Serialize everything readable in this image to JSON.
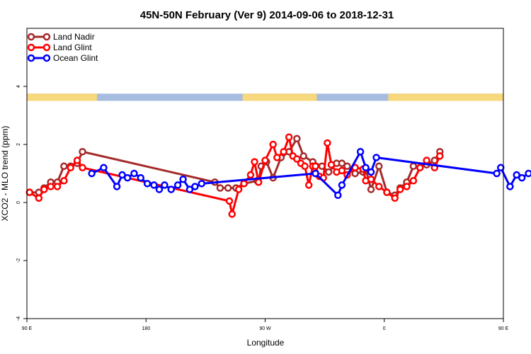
{
  "chart_data": {
    "type": "line",
    "title": "45N-50N February (Ver 9)   2014-09-06 to 2018-12-31",
    "xlabel": "Longitude",
    "ylabel": "XCO2 - MLO trend (ppm)",
    "xlim": [
      90,
      450
    ],
    "ylim": [
      -4,
      6
    ],
    "x_ticks": [
      {
        "value": 90,
        "label": "90 E"
      },
      {
        "value": 180,
        "label": "180"
      },
      {
        "value": 270,
        "label": "90 W"
      },
      {
        "value": 360,
        "label": "0"
      },
      {
        "value": 450,
        "label": "90 E"
      },
      {
        "value": 540,
        "label": "180"
      }
    ],
    "y_ticks": [
      {
        "value": -4,
        "label": "-4"
      },
      {
        "value": -2,
        "label": "-2"
      },
      {
        "value": 0,
        "label": "0"
      },
      {
        "value": 2,
        "label": "2"
      },
      {
        "value": 4,
        "label": "4"
      }
    ],
    "grid": false,
    "legend_position": "top-left",
    "land_ocean_band": {
      "y_range": [
        3.5,
        3.75
      ],
      "land_color": "#f7d87c",
      "ocean_color": "#a7bde0",
      "land_ranges": [
        [
          90,
          143
        ],
        [
          253,
          309
        ],
        [
          363,
          501
        ]
      ]
    },
    "series": [
      {
        "name": "Land Nadir",
        "color": "#a52a2a",
        "x": [
          92,
          99,
          103,
          108,
          113,
          118,
          123,
          128,
          132,
          232,
          236,
          242,
          248,
          254,
          264,
          265,
          267,
          271,
          276,
          282,
          288,
          294,
          299,
          306,
          313,
          318,
          324,
          328,
          332,
          338,
          344,
          346,
          350,
          356,
          362,
          368,
          372,
          377,
          382,
          387,
          392,
          398,
          402
        ],
        "y": [
          0.35,
          0.35,
          0.5,
          0.7,
          0.7,
          1.25,
          1.25,
          1.35,
          1.75,
          0.7,
          0.5,
          0.5,
          0.5,
          0.65,
          0.75,
          0.7,
          1.25,
          1.4,
          0.85,
          1.55,
          1.75,
          2.2,
          1.6,
          1.4,
          1.25,
          1.05,
          1.35,
          1.35,
          1.25,
          1.0,
          1.05,
          1.15,
          0.45,
          1.25,
          0.35,
          0.25,
          0.5,
          0.7,
          1.25,
          1.2,
          1.3,
          1.45,
          1.75
        ]
      },
      {
        "name": "Land Glint",
        "color": "#ff0000",
        "x": [
          92,
          99,
          103,
          108,
          113,
          118,
          123,
          128,
          132,
          243,
          245,
          250,
          254,
          259,
          262,
          265,
          270,
          276,
          279,
          284,
          288,
          291,
          294,
          297,
          300,
          303,
          306,
          308,
          311,
          314,
          317,
          320,
          324,
          328,
          332,
          338,
          344,
          346,
          350,
          356,
          362,
          368,
          372,
          377,
          382,
          387,
          392,
          398,
          402
        ],
        "y": [
          0.35,
          0.15,
          0.45,
          0.55,
          0.55,
          0.75,
          1.2,
          1.45,
          1.2,
          0.05,
          -0.4,
          0.45,
          0.65,
          0.95,
          1.4,
          0.7,
          1.45,
          2.0,
          1.55,
          1.75,
          2.25,
          1.6,
          1.5,
          1.35,
          1.25,
          0.6,
          1.25,
          1.25,
          0.9,
          0.85,
          2.05,
          1.3,
          1.05,
          1.1,
          0.95,
          1.2,
          1.15,
          0.75,
          0.8,
          0.55,
          0.35,
          0.15,
          0.45,
          0.55,
          0.75,
          1.2,
          1.45,
          1.2,
          1.6
        ]
      },
      {
        "name": "Ocean Glint",
        "color": "#0000ff",
        "x": [
          139,
          148,
          158,
          162,
          166,
          171,
          176,
          181,
          186,
          190,
          194,
          199,
          204,
          208,
          213,
          217,
          222,
          308,
          325,
          328,
          342,
          346,
          350,
          354,
          445,
          448,
          455,
          460,
          464,
          469
        ],
        "y": [
          1.0,
          1.2,
          0.55,
          0.95,
          0.85,
          1.0,
          0.85,
          0.65,
          0.6,
          0.45,
          0.6,
          0.45,
          0.6,
          0.8,
          0.45,
          0.55,
          0.65,
          1.0,
          0.25,
          0.6,
          1.75,
          1.2,
          1.05,
          1.55,
          1.0,
          1.2,
          0.55,
          0.95,
          0.85,
          1.0
        ]
      }
    ]
  }
}
